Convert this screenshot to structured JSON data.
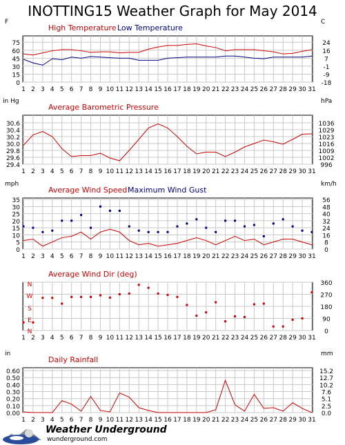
{
  "title": "INOTTING15 Weather Graph for May 2014",
  "colors": {
    "red": "#cc0000",
    "blue": "#000080",
    "grid": "#c8c8c8",
    "frame": "#000000"
  },
  "days": [
    "1",
    "2",
    "3",
    "4",
    "5",
    "6",
    "7",
    "8",
    "9",
    "10",
    "11",
    "12",
    "13",
    "14",
    "15",
    "16",
    "17",
    "18",
    "19",
    "20",
    "21",
    "22",
    "23",
    "24",
    "25",
    "26",
    "27",
    "28",
    "29",
    "30",
    "31"
  ],
  "chart_data": [
    {
      "type": "line",
      "left_unit": "F",
      "right_unit": "C",
      "yticks": [
        "75",
        "60",
        "45",
        "30",
        "15",
        "0"
      ],
      "yticks_right": [
        "24",
        "16",
        "7",
        "-1",
        "-9",
        "-18"
      ],
      "ylim": [
        0,
        87
      ],
      "series": [
        {
          "name": "High Temperature",
          "color": "#cc0000",
          "kind": "line",
          "values": [
            53,
            51,
            55,
            59,
            61,
            61,
            59,
            56,
            57,
            57,
            55,
            56,
            56,
            62,
            66,
            69,
            69,
            71,
            72,
            68,
            65,
            59,
            61,
            61,
            61,
            59,
            57,
            53,
            54,
            58,
            61
          ]
        },
        {
          "name": "Low Temperature",
          "color": "#000080",
          "kind": "line",
          "values": [
            43,
            36,
            32,
            44,
            42,
            47,
            45,
            48,
            47,
            46,
            45,
            45,
            41,
            41,
            41,
            45,
            46,
            47,
            47,
            47,
            47,
            49,
            49,
            47,
            45,
            44,
            47,
            47,
            47,
            47,
            49
          ]
        }
      ]
    },
    {
      "type": "line",
      "left_unit": "in Hg",
      "right_unit": "hPa",
      "title": "Average Barometric Pressure",
      "yticks": [
        "30.6",
        "30.4",
        "30.2",
        "30.0",
        "29.8",
        "29.6",
        "29.4"
      ],
      "yticks_right": [
        "1036",
        "1029",
        "1023",
        "1016",
        "1009",
        "1002",
        "996"
      ],
      "ylim": [
        29.4,
        30.82
      ],
      "series": [
        {
          "name": "Average Barometric Pressure",
          "color": "#cc0000",
          "kind": "line",
          "values": [
            29.95,
            30.25,
            30.35,
            30.2,
            29.85,
            29.62,
            29.65,
            29.65,
            29.72,
            29.58,
            29.5,
            29.8,
            30.12,
            30.45,
            30.57,
            30.45,
            30.2,
            29.92,
            29.7,
            29.75,
            29.75,
            29.62,
            29.75,
            29.9,
            30.0,
            30.1,
            30.05,
            29.98,
            30.12,
            30.27,
            30.28
          ]
        }
      ]
    },
    {
      "type": "scatter",
      "left_unit": "mph",
      "right_unit": "km/h",
      "yticks": [
        "35",
        "30",
        "25",
        "20",
        "15",
        "10",
        "5",
        "0"
      ],
      "yticks_right": [
        "56",
        "48",
        "40",
        "32",
        "24",
        "16",
        "8",
        "0"
      ],
      "ylim": [
        0,
        36
      ],
      "series": [
        {
          "name": "Average Wind Speed",
          "color": "#cc0000",
          "kind": "line",
          "values": [
            6,
            7,
            2,
            5,
            8,
            9,
            12,
            7,
            12,
            14,
            12,
            6,
            3,
            4,
            2,
            3,
            4,
            6,
            8,
            6,
            3,
            6,
            9,
            6,
            7,
            3,
            5,
            7,
            7,
            5,
            3
          ]
        },
        {
          "name": "Maximum Wind Gust",
          "color": "#000080",
          "kind": "points",
          "values": [
            16,
            15,
            12,
            13,
            20,
            20,
            24,
            15,
            30,
            27,
            27,
            16,
            13,
            12,
            12,
            12,
            16,
            18,
            21,
            15,
            12,
            20,
            20,
            16,
            17,
            9,
            18,
            21,
            16,
            13,
            12
          ]
        }
      ]
    },
    {
      "type": "scatter",
      "right_unit": "",
      "title": "Average Wind Dir (deg)",
      "yticks_left_letters": [
        "N",
        "W",
        "S",
        "E",
        "N"
      ],
      "yticks_right": [
        "360",
        "270",
        "180",
        "90",
        "0"
      ],
      "ylim": [
        0,
        360
      ],
      "series": [
        {
          "name": "Average Wind Dir (deg)",
          "color": "#cc0000",
          "kind": "points",
          "values": [
            60,
            60,
            243,
            243,
            200,
            250,
            250,
            250,
            262,
            245,
            270,
            275,
            340,
            318,
            275,
            265,
            250,
            190,
            110,
            135,
            210,
            68,
            105,
            100,
            195,
            200,
            30,
            30,
            80,
            90,
            285
          ]
        }
      ]
    },
    {
      "type": "line",
      "left_unit": "in",
      "right_unit": "mm",
      "title": "Daily Rainfall",
      "yticks": [
        "0.60",
        "0.50",
        "0.40",
        "0.30",
        "0.20",
        "0.10",
        "0.00"
      ],
      "yticks_right": [
        "15.2",
        "12.7",
        "10.2",
        "7.6",
        "5.1",
        "2.5",
        "0.0"
      ],
      "ylim": [
        0,
        0.64
      ],
      "series": [
        {
          "name": "Daily Rainfall",
          "color": "#cc0000",
          "kind": "line",
          "values": [
            0.01,
            0,
            0,
            0,
            0.17,
            0.12,
            0.02,
            0.23,
            0.03,
            0.01,
            0.28,
            0.22,
            0.07,
            0.03,
            0,
            0,
            0,
            0,
            0,
            0,
            0.04,
            0.46,
            0.11,
            0.02,
            0.26,
            0.06,
            0.07,
            0.02,
            0.14,
            0.06,
            0
          ]
        }
      ]
    }
  ],
  "footer": {
    "brand": "Weather Underground",
    "url": "wunderground.com"
  }
}
